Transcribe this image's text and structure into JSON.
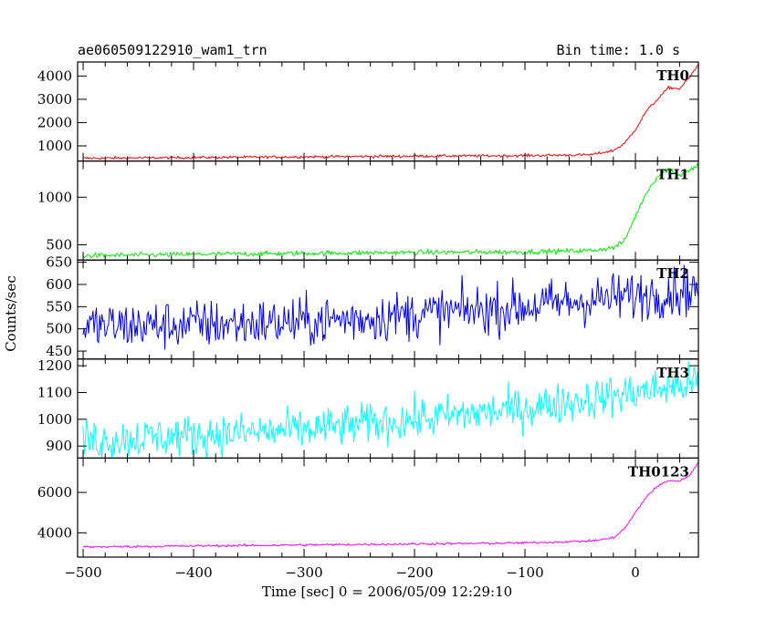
{
  "chart_data": {
    "type": "line",
    "title": "ae060509122910_wam1_trn",
    "bin_time_label": "Bin time: 1.0 s",
    "xlabel": "Time [sec] 0 = 2006/05/09 12:29:10",
    "ylabel": "Counts/sec",
    "xlim": [
      -505,
      57
    ],
    "xticks": [
      -500,
      -400,
      -300,
      -200,
      -100,
      0
    ],
    "xtick_labels": [
      "−500",
      "−400",
      "−300",
      "−200",
      "−100",
      "0"
    ],
    "grid": false,
    "panels": [
      {
        "name": "TH0",
        "color": "#ff0000",
        "ylim": [
          350,
          4600
        ],
        "yticks": [
          1000,
          2000,
          3000,
          4000
        ],
        "ytick_labels": [
          "1000",
          "2000",
          "3000",
          "4000"
        ],
        "noise": 40,
        "x": [
          -500,
          -400,
          -300,
          -200,
          -100,
          -40,
          -20,
          -10,
          0,
          10,
          20,
          30,
          40,
          50,
          57
        ],
        "y": [
          470,
          500,
          530,
          560,
          580,
          620,
          800,
          1100,
          1700,
          2500,
          3000,
          3500,
          3450,
          4000,
          4500
        ]
      },
      {
        "name": "TH1",
        "color": "#00ee00",
        "ylim": [
          340,
          1380
        ],
        "yticks": [
          500,
          1000
        ],
        "ytick_labels": [
          "500",
          "1000"
        ],
        "noise": 18,
        "x": [
          -500,
          -400,
          -300,
          -200,
          -100,
          -40,
          -20,
          -10,
          0,
          10,
          20,
          30,
          40,
          50,
          57
        ],
        "y": [
          385,
          400,
          410,
          420,
          425,
          440,
          470,
          540,
          800,
          1050,
          1220,
          1300,
          1230,
          1290,
          1340
        ]
      },
      {
        "name": "TH2",
        "color": "#0000ee",
        "ylim": [
          432,
          655
        ],
        "yticks": [
          450,
          500,
          550,
          600,
          650
        ],
        "ytick_labels": [
          "450",
          "500",
          "550",
          "600",
          "650"
        ],
        "noise": 40,
        "x": [
          -500,
          -300,
          -100,
          0,
          57
        ],
        "y": [
          505,
          515,
          550,
          575,
          590
        ]
      },
      {
        "name": "TH3",
        "color": "#00ffff",
        "ylim": [
          855,
          1225
        ],
        "yticks": [
          900,
          1000,
          1100,
          1200
        ],
        "ytick_labels": [
          "900",
          "1000",
          "1100",
          "1200"
        ],
        "noise": 55,
        "x": [
          -500,
          -300,
          -200,
          -100,
          0,
          57
        ],
        "y": [
          920,
          960,
          1000,
          1040,
          1100,
          1140
        ]
      },
      {
        "name": "TH0123",
        "color": "#ff00ff",
        "ylim": [
          2800,
          7700
        ],
        "yticks": [
          4000,
          6000
        ],
        "ytick_labels": [
          "4000",
          "6000"
        ],
        "noise": 40,
        "x": [
          -500,
          -400,
          -300,
          -200,
          -100,
          -40,
          -20,
          -10,
          0,
          10,
          20,
          30,
          40,
          50,
          57
        ],
        "y": [
          3300,
          3350,
          3400,
          3450,
          3500,
          3600,
          3750,
          4200,
          5000,
          5800,
          6300,
          6600,
          6550,
          6900,
          7500
        ]
      }
    ]
  }
}
